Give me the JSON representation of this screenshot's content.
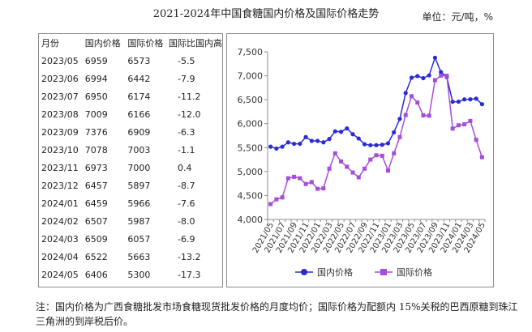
{
  "header": {
    "title": "2021-2024年中国食糖国内价格及国际价格走势",
    "unit": "单位：元/吨，%"
  },
  "table": {
    "headers": [
      "月份",
      "国内价格",
      "国际价格",
      "国际比国内高"
    ],
    "rows": [
      [
        "2023/05",
        "6959",
        "6573",
        "-5.5"
      ],
      [
        "2023/06",
        "6994",
        "6442",
        "-7.9"
      ],
      [
        "2023/07",
        "6950",
        "6174",
        "-11.2"
      ],
      [
        "2023/08",
        "7009",
        "6166",
        "-12.0"
      ],
      [
        "2023/09",
        "7376",
        "6909",
        "-6.3"
      ],
      [
        "2023/10",
        "7078",
        "7003",
        "-1.1"
      ],
      [
        "2023/11",
        "6973",
        "7000",
        "0.4"
      ],
      [
        "2023/12",
        "6457",
        "5897",
        "-8.7"
      ],
      [
        "2024/01",
        "6459",
        "5966",
        "-7.6"
      ],
      [
        "2024/02",
        "6507",
        "5987",
        "-8.0"
      ],
      [
        "2024/03",
        "6509",
        "6057",
        "-6.9"
      ],
      [
        "2024/04",
        "6522",
        "5663",
        "-13.2"
      ],
      [
        "2024/05",
        "6406",
        "5300",
        "-17.3"
      ]
    ]
  },
  "note": "注：国内价格为广西食糖批发市场食糖现货批发价格的月度均价；国际价格为配额内 15%关税的巴西原糖到珠江三角洲的到岸税后价。",
  "chart_data": {
    "type": "line",
    "ylim": [
      4000,
      7500
    ],
    "yticks": [
      4000,
      4500,
      5000,
      5500,
      6000,
      6500,
      7000,
      7500
    ],
    "ytick_labels": [
      "4,000",
      "4,500",
      "5,000",
      "5,500",
      "6,000",
      "6,500",
      "7,000",
      "7,500"
    ],
    "x": [
      "2021/05",
      "2021/06",
      "2021/07",
      "2021/08",
      "2021/09",
      "2021/10",
      "2021/11",
      "2021/12",
      "2022/01",
      "2022/02",
      "2022/03",
      "2022/04",
      "2022/05",
      "2022/06",
      "2022/07",
      "2022/08",
      "2022/09",
      "2022/10",
      "2022/11",
      "2022/12",
      "2023/01",
      "2023/02",
      "2023/03",
      "2023/04",
      "2023/05",
      "2023/06",
      "2023/07",
      "2023/08",
      "2023/09",
      "2023/10",
      "2023/11",
      "2023/12",
      "2024/01",
      "2024/02",
      "2024/03",
      "2024/04",
      "2024/05"
    ],
    "xtick_labels": [
      "2021/05",
      "2021/07",
      "2021/09",
      "2021/11",
      "2022/01",
      "2022/03",
      "2022/05",
      "2022/07",
      "2022/09",
      "2022/11",
      "2023/01",
      "2023/03",
      "2023/05",
      "2023/07",
      "2023/09",
      "2023/11",
      "2024/01",
      "2024/03",
      "2024/05"
    ],
    "series": [
      {
        "name": "国内价格",
        "color": "#2b2bd6",
        "marker": "circle",
        "values": [
          5520,
          5480,
          5520,
          5610,
          5580,
          5580,
          5720,
          5640,
          5640,
          5610,
          5680,
          5840,
          5830,
          5900,
          5780,
          5690,
          5570,
          5550,
          5550,
          5560,
          5590,
          5820,
          6100,
          6640,
          6959,
          6994,
          6950,
          7009,
          7376,
          7078,
          6973,
          6457,
          6459,
          6507,
          6509,
          6522,
          6406
        ]
      },
      {
        "name": "国际价格",
        "color": "#a64dd9",
        "marker": "square",
        "values": [
          4320,
          4420,
          4460,
          4860,
          4890,
          4860,
          4740,
          4780,
          4640,
          4650,
          5060,
          5380,
          5210,
          5100,
          4980,
          4880,
          5060,
          5250,
          5340,
          5330,
          5020,
          5380,
          5720,
          6180,
          6573,
          6442,
          6174,
          6166,
          6909,
          7003,
          7000,
          5897,
          5966,
          5987,
          6057,
          5663,
          5300
        ]
      }
    ],
    "legend_position": "bottom"
  }
}
